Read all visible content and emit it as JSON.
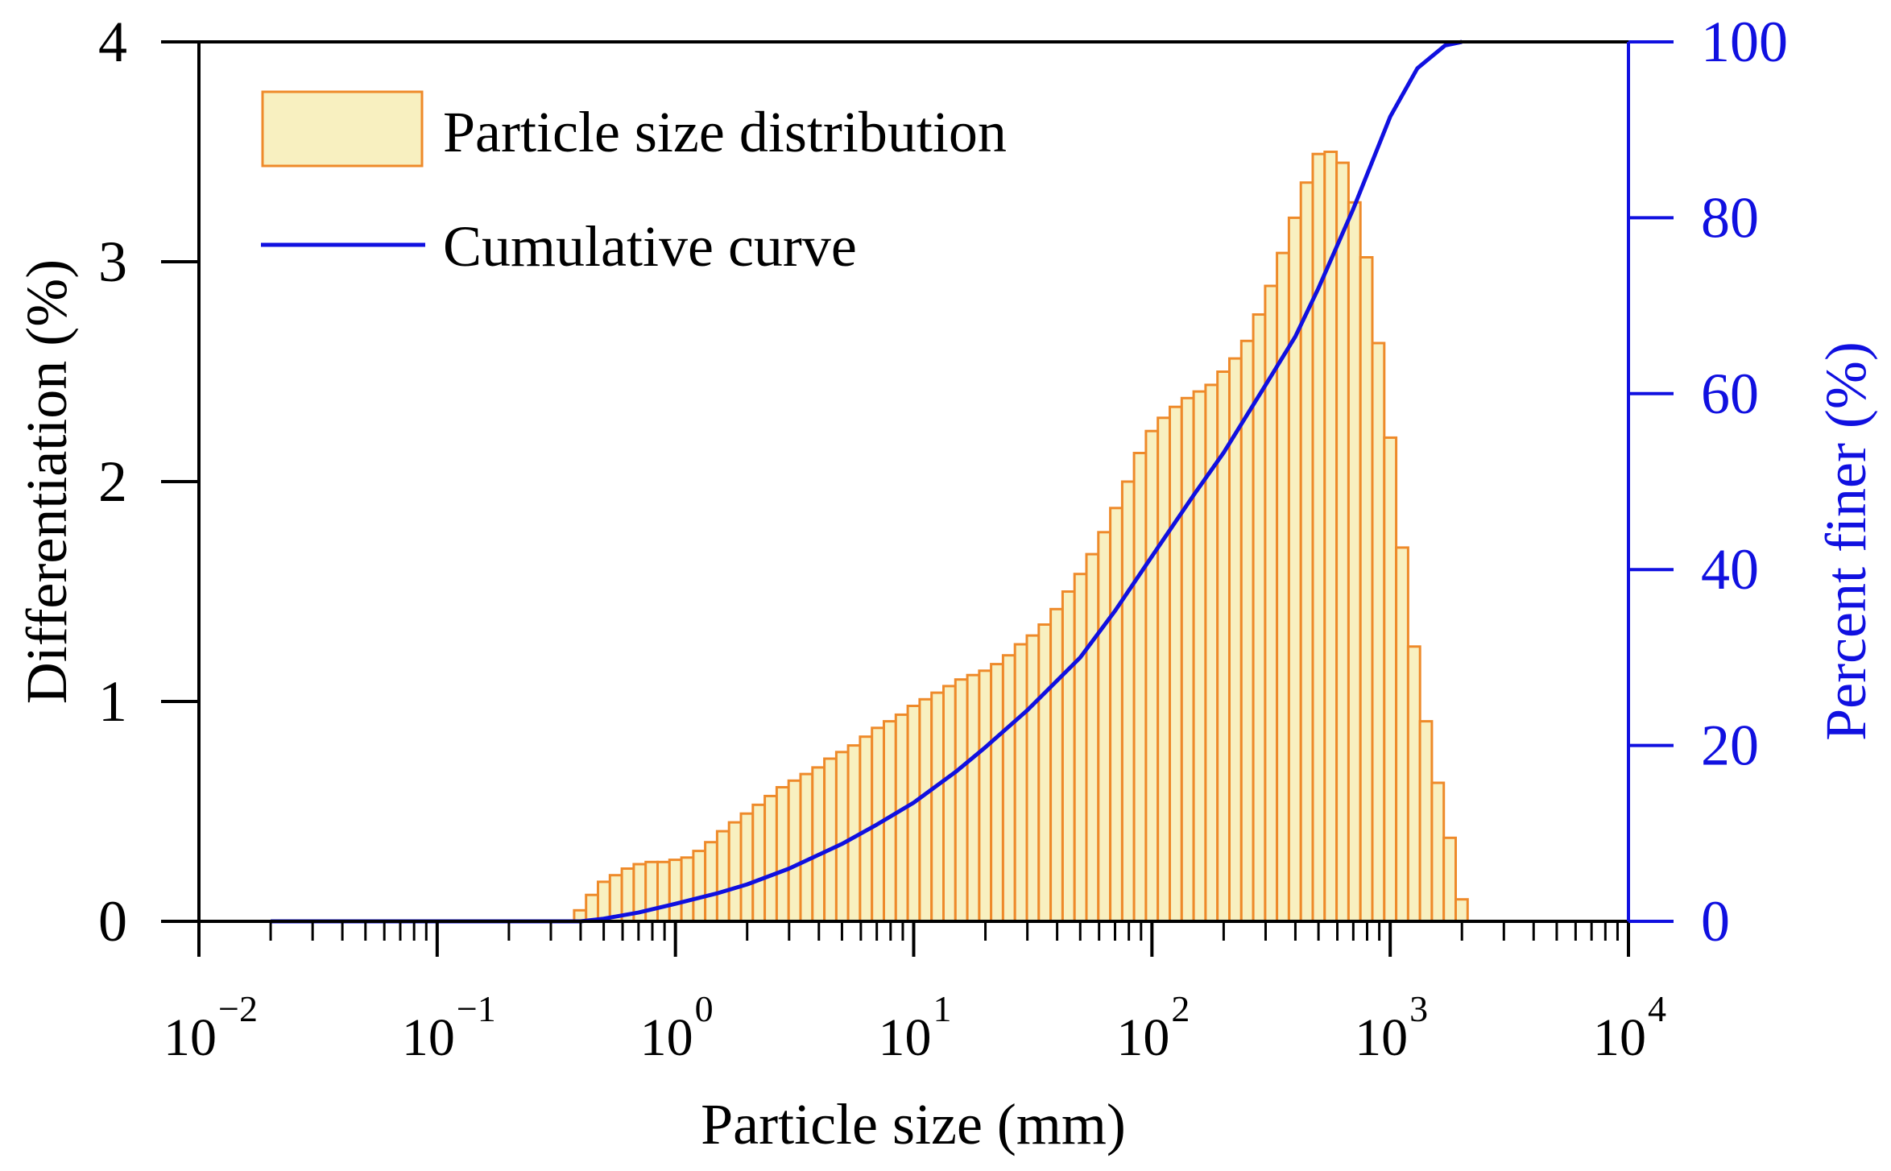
{
  "chart_data": {
    "type": "bar",
    "xlabel": "Particle size (mm)",
    "ylabel_left": "Differentiation (%)",
    "ylabel_right": "Percent finer (%)",
    "x_scale": "log",
    "xlim": [
      0.01,
      10000
    ],
    "ylim_left": [
      0,
      4
    ],
    "ylim_right": [
      0,
      100
    ],
    "x_ticks": [
      {
        "base": "10",
        "exp": "−2"
      },
      {
        "base": "10",
        "exp": "−1"
      },
      {
        "base": "10",
        "exp": "0"
      },
      {
        "base": "10",
        "exp": "1"
      },
      {
        "base": "10",
        "exp": "2"
      },
      {
        "base": "10",
        "exp": "3"
      },
      {
        "base": "10",
        "exp": "4"
      }
    ],
    "y_ticks_left": [
      "0",
      "1",
      "2",
      "3",
      "4"
    ],
    "y_ticks_right": [
      "0",
      "20",
      "40",
      "60",
      "80",
      "100"
    ],
    "legend_position": "top-left",
    "legend": {
      "bars_label": "Particle size distribution",
      "curve_label": "Cumulative curve"
    },
    "colors": {
      "bar_fill": "#f8f0c0",
      "bar_edge": "#ee8a2a",
      "curve": "#1010e0",
      "right_axis": "#1010e0",
      "left_axis": "#000000"
    },
    "series": [
      {
        "name": "Particle size distribution",
        "axis": "left",
        "bin_log_width": 0.05,
        "bins_log10_center": [
          -0.4,
          -0.35,
          -0.3,
          -0.25,
          -0.2,
          -0.15,
          -0.1,
          -0.05,
          0.0,
          0.05,
          0.1,
          0.15,
          0.2,
          0.25,
          0.3,
          0.35,
          0.4,
          0.45,
          0.5,
          0.55,
          0.6,
          0.65,
          0.7,
          0.75,
          0.8,
          0.85,
          0.9,
          0.95,
          1.0,
          1.05,
          1.1,
          1.15,
          1.2,
          1.25,
          1.3,
          1.35,
          1.4,
          1.45,
          1.5,
          1.55,
          1.6,
          1.65,
          1.7,
          1.75,
          1.8,
          1.85,
          1.9,
          1.95,
          2.0,
          2.05,
          2.1,
          2.15,
          2.2,
          2.25,
          2.3,
          2.35,
          2.4,
          2.45,
          2.5,
          2.55,
          2.6,
          2.65,
          2.7,
          2.75,
          2.8,
          2.85,
          2.9,
          2.95,
          3.0,
          3.05,
          3.1,
          3.15,
          3.2,
          3.25,
          3.3
        ],
        "values": [
          0.05,
          0.12,
          0.18,
          0.21,
          0.24,
          0.26,
          0.27,
          0.27,
          0.28,
          0.29,
          0.32,
          0.36,
          0.41,
          0.45,
          0.49,
          0.53,
          0.57,
          0.61,
          0.64,
          0.67,
          0.7,
          0.74,
          0.77,
          0.8,
          0.84,
          0.88,
          0.91,
          0.94,
          0.98,
          1.01,
          1.04,
          1.07,
          1.1,
          1.12,
          1.14,
          1.17,
          1.21,
          1.26,
          1.3,
          1.35,
          1.42,
          1.5,
          1.58,
          1.67,
          1.77,
          1.88,
          2.0,
          2.13,
          2.23,
          2.29,
          2.34,
          2.38,
          2.41,
          2.44,
          2.5,
          2.56,
          2.64,
          2.76,
          2.89,
          3.04,
          3.2,
          3.36,
          3.49,
          3.5,
          3.45,
          3.27,
          3.02,
          2.63,
          2.2,
          1.7,
          1.25,
          0.91,
          0.63,
          0.38,
          0.1
        ]
      },
      {
        "name": "Cumulative curve",
        "axis": "right",
        "x": [
          0.02,
          0.3,
          0.4,
          0.5,
          0.7,
          1.0,
          1.5,
          2.0,
          3.0,
          5.0,
          7.0,
          10.0,
          15.0,
          20.0,
          30.0,
          50.0,
          70.0,
          100.0,
          150.0,
          200.0,
          300.0,
          400.0,
          500.0,
          700.0,
          1000.0,
          1300.0,
          1700.0,
          2000.0
        ],
        "y": [
          0,
          0,
          0,
          0.3,
          1.0,
          2.0,
          3.2,
          4.2,
          6.0,
          8.8,
          11.0,
          13.5,
          17.0,
          19.8,
          24.0,
          30.0,
          35.3,
          41.5,
          48.5,
          53.3,
          61.0,
          66.5,
          72.0,
          81.0,
          91.5,
          97.0,
          99.6,
          100.0
        ]
      }
    ]
  }
}
